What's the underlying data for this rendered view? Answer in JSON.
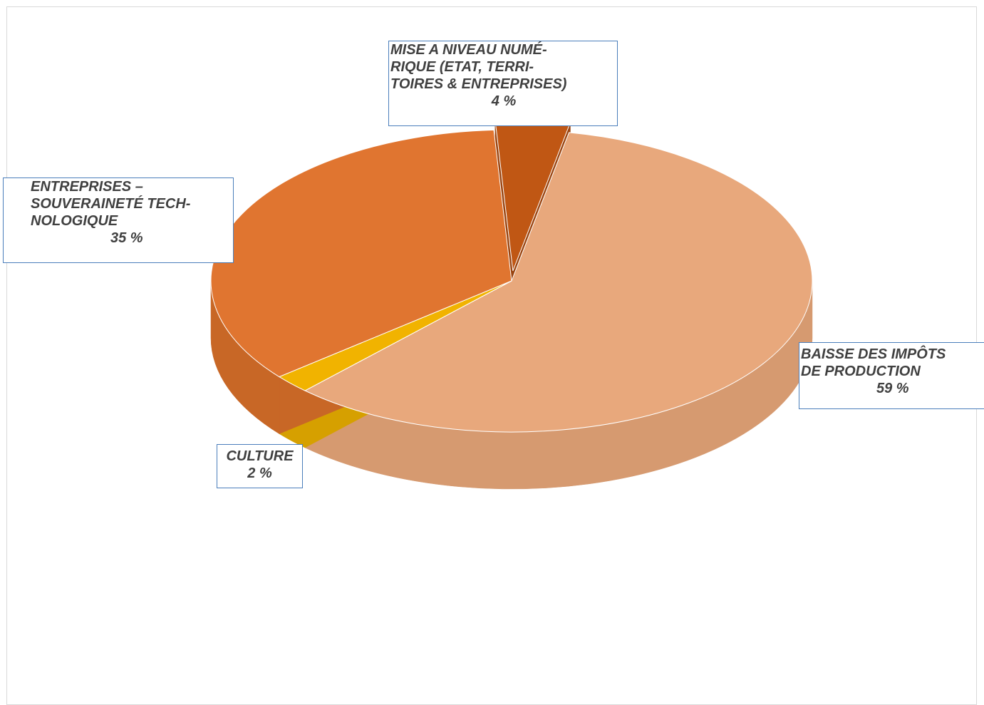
{
  "chart_data": {
    "type": "pie",
    "three_d": true,
    "slices": [
      {
        "lines": [
          "MISE A NIVEAU NUMÉ-",
          "RIQUE (ETAT, TERRI-",
          "TOIRES & ENTREPRISES)"
        ],
        "value": 4,
        "value_label": "4 %",
        "color": "#c05714",
        "side_color": "#9a4410",
        "exploded": true
      },
      {
        "lines": [
          "BAISSE DES IMPÔTS",
          "DE PRODUCTION"
        ],
        "value": 59,
        "value_label": "59 %",
        "color": "#e8a87c",
        "side_color": "#d69a70",
        "exploded": false
      },
      {
        "lines": [
          "CULTURE"
        ],
        "value": 2,
        "value_label": "2 %",
        "color": "#f1b300",
        "side_color": "#d6a000",
        "exploded": false
      },
      {
        "lines": [
          "ENTREPRISES –",
          "SOUVERAINETÉ TECH-",
          "NOLOGIQUE"
        ],
        "value": 35,
        "value_label": "35 %",
        "color": "#e07530",
        "side_color": "#c86726",
        "exploded": false
      }
    ]
  }
}
